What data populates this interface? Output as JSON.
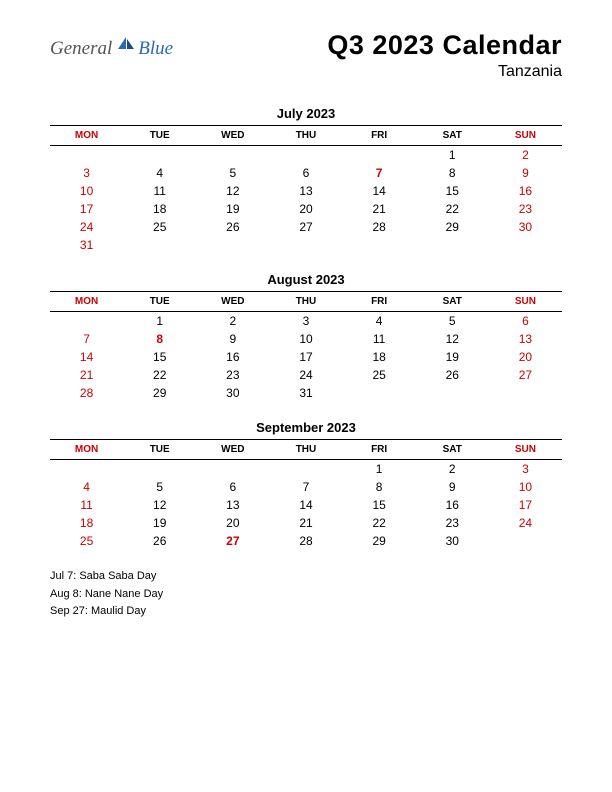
{
  "logo": {
    "general": "General",
    "blue": "Blue"
  },
  "title": "Q3 2023 Calendar",
  "subtitle": "Tanzania",
  "day_headers": [
    "MON",
    "TUE",
    "WED",
    "THU",
    "FRI",
    "SAT",
    "SUN"
  ],
  "weekend_header_indices": [
    0,
    6
  ],
  "colors": {
    "normal": "#000000",
    "red": "#cc0000",
    "background": "#ffffff",
    "logo_blue": "#2b6cb0",
    "logo_gray": "#555555"
  },
  "months": [
    {
      "title": "July 2023",
      "weeks": [
        [
          null,
          null,
          null,
          null,
          null,
          {
            "d": 1
          },
          {
            "d": 2,
            "red": true
          }
        ],
        [
          {
            "d": 3,
            "red": true
          },
          {
            "d": 4
          },
          {
            "d": 5
          },
          {
            "d": 6
          },
          {
            "d": 7,
            "holiday": true
          },
          {
            "d": 8
          },
          {
            "d": 9,
            "red": true
          }
        ],
        [
          {
            "d": 10,
            "red": true
          },
          {
            "d": 11
          },
          {
            "d": 12
          },
          {
            "d": 13
          },
          {
            "d": 14
          },
          {
            "d": 15
          },
          {
            "d": 16,
            "red": true
          }
        ],
        [
          {
            "d": 17,
            "red": true
          },
          {
            "d": 18
          },
          {
            "d": 19
          },
          {
            "d": 20
          },
          {
            "d": 21
          },
          {
            "d": 22
          },
          {
            "d": 23,
            "red": true
          }
        ],
        [
          {
            "d": 24,
            "red": true
          },
          {
            "d": 25
          },
          {
            "d": 26
          },
          {
            "d": 27
          },
          {
            "d": 28
          },
          {
            "d": 29
          },
          {
            "d": 30,
            "red": true
          }
        ],
        [
          {
            "d": 31,
            "red": true
          },
          null,
          null,
          null,
          null,
          null,
          null
        ]
      ]
    },
    {
      "title": "August 2023",
      "weeks": [
        [
          null,
          {
            "d": 1
          },
          {
            "d": 2
          },
          {
            "d": 3
          },
          {
            "d": 4
          },
          {
            "d": 5
          },
          {
            "d": 6,
            "red": true
          }
        ],
        [
          {
            "d": 7,
            "red": true
          },
          {
            "d": 8,
            "holiday": true
          },
          {
            "d": 9
          },
          {
            "d": 10
          },
          {
            "d": 11
          },
          {
            "d": 12
          },
          {
            "d": 13,
            "red": true
          }
        ],
        [
          {
            "d": 14,
            "red": true
          },
          {
            "d": 15
          },
          {
            "d": 16
          },
          {
            "d": 17
          },
          {
            "d": 18
          },
          {
            "d": 19
          },
          {
            "d": 20,
            "red": true
          }
        ],
        [
          {
            "d": 21,
            "red": true
          },
          {
            "d": 22
          },
          {
            "d": 23
          },
          {
            "d": 24
          },
          {
            "d": 25
          },
          {
            "d": 26
          },
          {
            "d": 27,
            "red": true
          }
        ],
        [
          {
            "d": 28,
            "red": true
          },
          {
            "d": 29
          },
          {
            "d": 30
          },
          {
            "d": 31
          },
          null,
          null,
          null
        ]
      ]
    },
    {
      "title": "September 2023",
      "weeks": [
        [
          null,
          null,
          null,
          null,
          {
            "d": 1
          },
          {
            "d": 2
          },
          {
            "d": 3,
            "red": true
          }
        ],
        [
          {
            "d": 4,
            "red": true
          },
          {
            "d": 5
          },
          {
            "d": 6
          },
          {
            "d": 7
          },
          {
            "d": 8
          },
          {
            "d": 9
          },
          {
            "d": 10,
            "red": true
          }
        ],
        [
          {
            "d": 11,
            "red": true
          },
          {
            "d": 12
          },
          {
            "d": 13
          },
          {
            "d": 14
          },
          {
            "d": 15
          },
          {
            "d": 16
          },
          {
            "d": 17,
            "red": true
          }
        ],
        [
          {
            "d": 18,
            "red": true
          },
          {
            "d": 19
          },
          {
            "d": 20
          },
          {
            "d": 21
          },
          {
            "d": 22
          },
          {
            "d": 23
          },
          {
            "d": 24,
            "red": true
          }
        ],
        [
          {
            "d": 25,
            "red": true
          },
          {
            "d": 26
          },
          {
            "d": 27,
            "holiday": true
          },
          {
            "d": 28
          },
          {
            "d": 29
          },
          {
            "d": 30
          },
          null
        ]
      ]
    }
  ],
  "holidays": [
    "Jul 7: Saba Saba Day",
    "Aug 8: Nane Nane Day",
    "Sep 27: Maulid Day"
  ]
}
